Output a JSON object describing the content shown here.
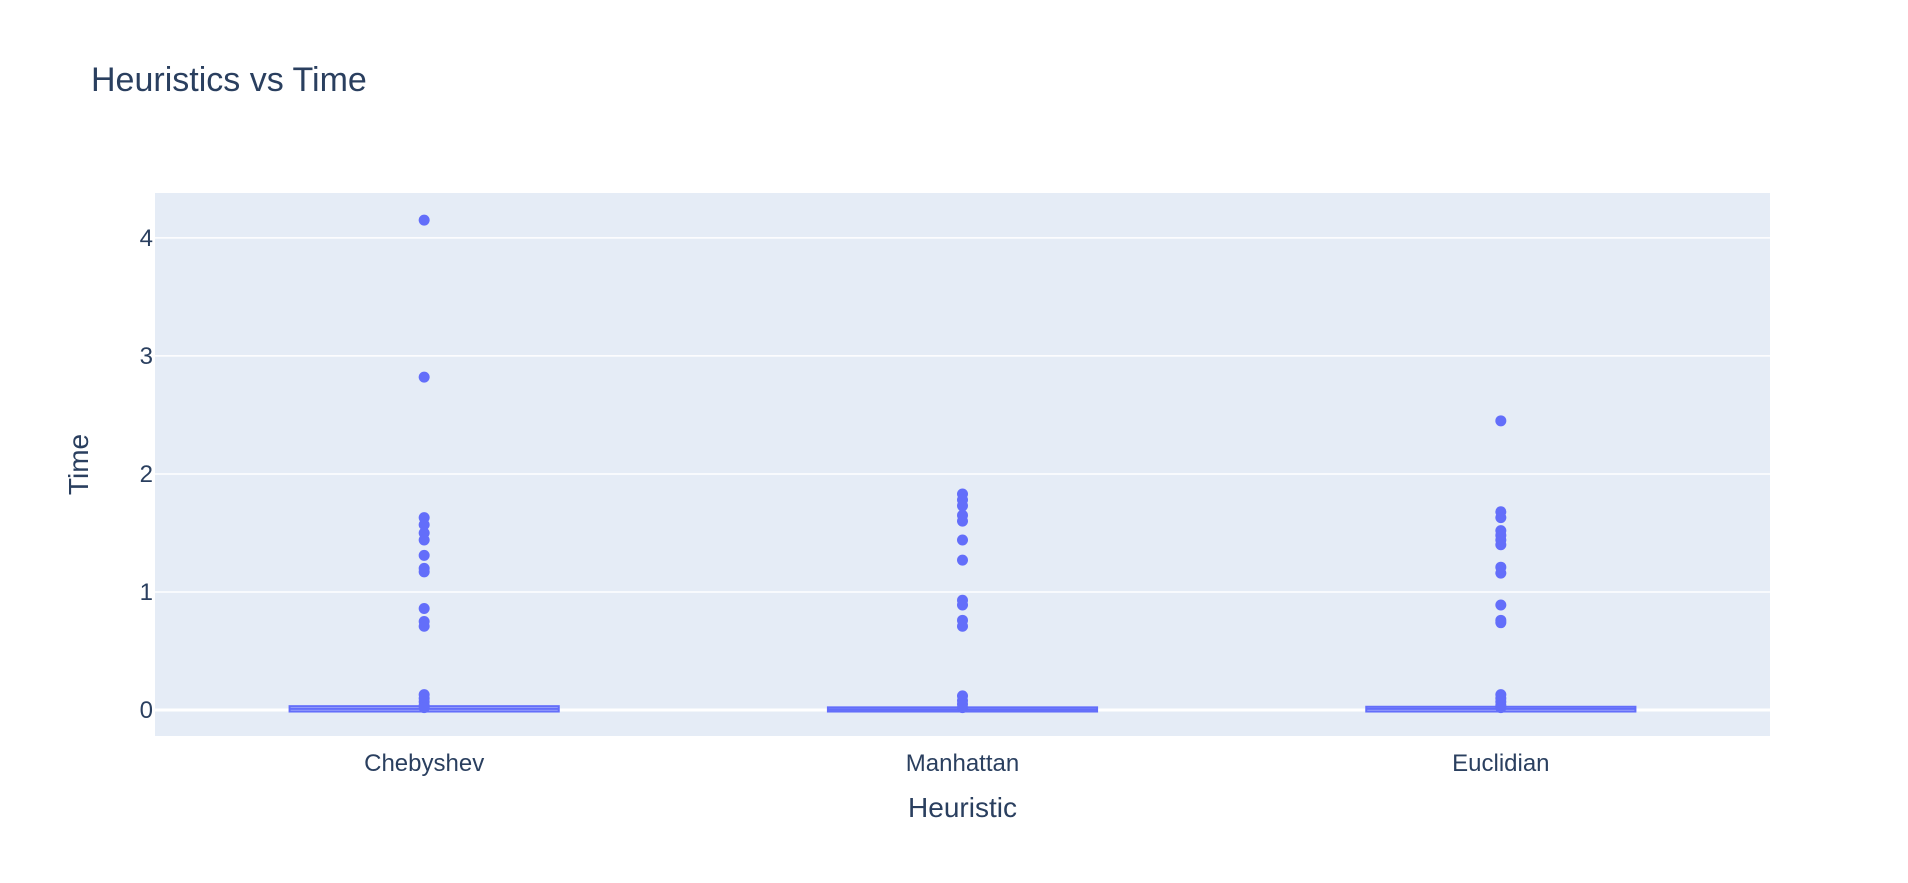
{
  "chart_data": {
    "type": "box",
    "title": "Heuristics vs Time",
    "xlabel": "Heuristic",
    "ylabel": "Time",
    "categories": [
      "Chebyshev",
      "Manhattan",
      "Euclidian"
    ],
    "ylim": [
      -0.22,
      4.38
    ],
    "yticks": [
      0,
      1,
      2,
      3,
      4
    ],
    "grid": true,
    "colors": {
      "box": "#636efa",
      "plot_bg": "#e5ecf6",
      "grid": "#ffffff",
      "text": "#2a3f5f"
    },
    "series": [
      {
        "category": "Chebyshev",
        "box": {
          "q1": 0.0,
          "median": 0.01,
          "q3": 0.02,
          "lower_fence": 0.0,
          "upper_fence": 0.03
        },
        "outliers": [
          4.15,
          2.82,
          1.63,
          1.57,
          1.5,
          1.44,
          1.31,
          1.2,
          1.17,
          0.86,
          0.75,
          0.71,
          0.13,
          0.1,
          0.07,
          0.04,
          0.02
        ]
      },
      {
        "category": "Manhattan",
        "box": {
          "q1": 0.0,
          "median": 0.005,
          "q3": 0.01,
          "lower_fence": 0.0,
          "upper_fence": 0.02
        },
        "outliers": [
          1.83,
          1.78,
          1.73,
          1.65,
          1.6,
          1.44,
          1.27,
          0.93,
          0.89,
          0.76,
          0.71,
          0.12,
          0.08,
          0.05,
          0.02
        ]
      },
      {
        "category": "Euclidian",
        "box": {
          "q1": 0.0,
          "median": 0.01,
          "q3": 0.015,
          "lower_fence": 0.0,
          "upper_fence": 0.025
        },
        "outliers": [
          2.45,
          1.68,
          1.63,
          1.52,
          1.48,
          1.44,
          1.4,
          1.21,
          1.16,
          0.89,
          0.76,
          0.74,
          0.13,
          0.1,
          0.07,
          0.04,
          0.02
        ]
      }
    ]
  }
}
